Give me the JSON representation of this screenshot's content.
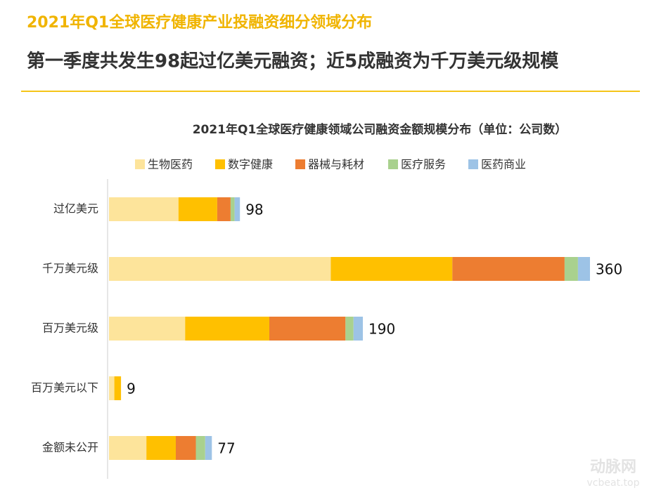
{
  "chart_data": {
    "type": "stacked-bar-horizontal",
    "header_title": "2021年Q1全球医疗健康产业投融资细分领域分布",
    "subtitle": "第一季度共发生98起过亿美元融资；近5成融资为千万美元级规模",
    "title": "2021年Q1全球医疗健康领域公司融资金额规模分布（单位：公司数）",
    "categories": [
      "过亿美元",
      "千万美元级",
      "百万美元级",
      "百万美元以下",
      "金额未公开"
    ],
    "series": [
      {
        "name": "生物医药",
        "color": "#fde49b",
        "values": [
          52,
          166,
          57,
          4,
          28
        ]
      },
      {
        "name": "数字健康",
        "color": "#ffc000",
        "values": [
          29,
          91,
          63,
          5,
          22
        ]
      },
      {
        "name": "器械与耗材",
        "color": "#ed7d31",
        "values": [
          10,
          84,
          57,
          0,
          15
        ]
      },
      {
        "name": "医疗服务",
        "color": "#a9d18e",
        "values": [
          3,
          10,
          6,
          0,
          7
        ]
      },
      {
        "name": "医药商业",
        "color": "#9dc3e6",
        "values": [
          4,
          9,
          7,
          0,
          5
        ]
      }
    ],
    "totals": [
      98,
      360,
      190,
      9,
      77
    ],
    "watermark": "动脉网",
    "watermark_url": "vcbeat.top"
  }
}
